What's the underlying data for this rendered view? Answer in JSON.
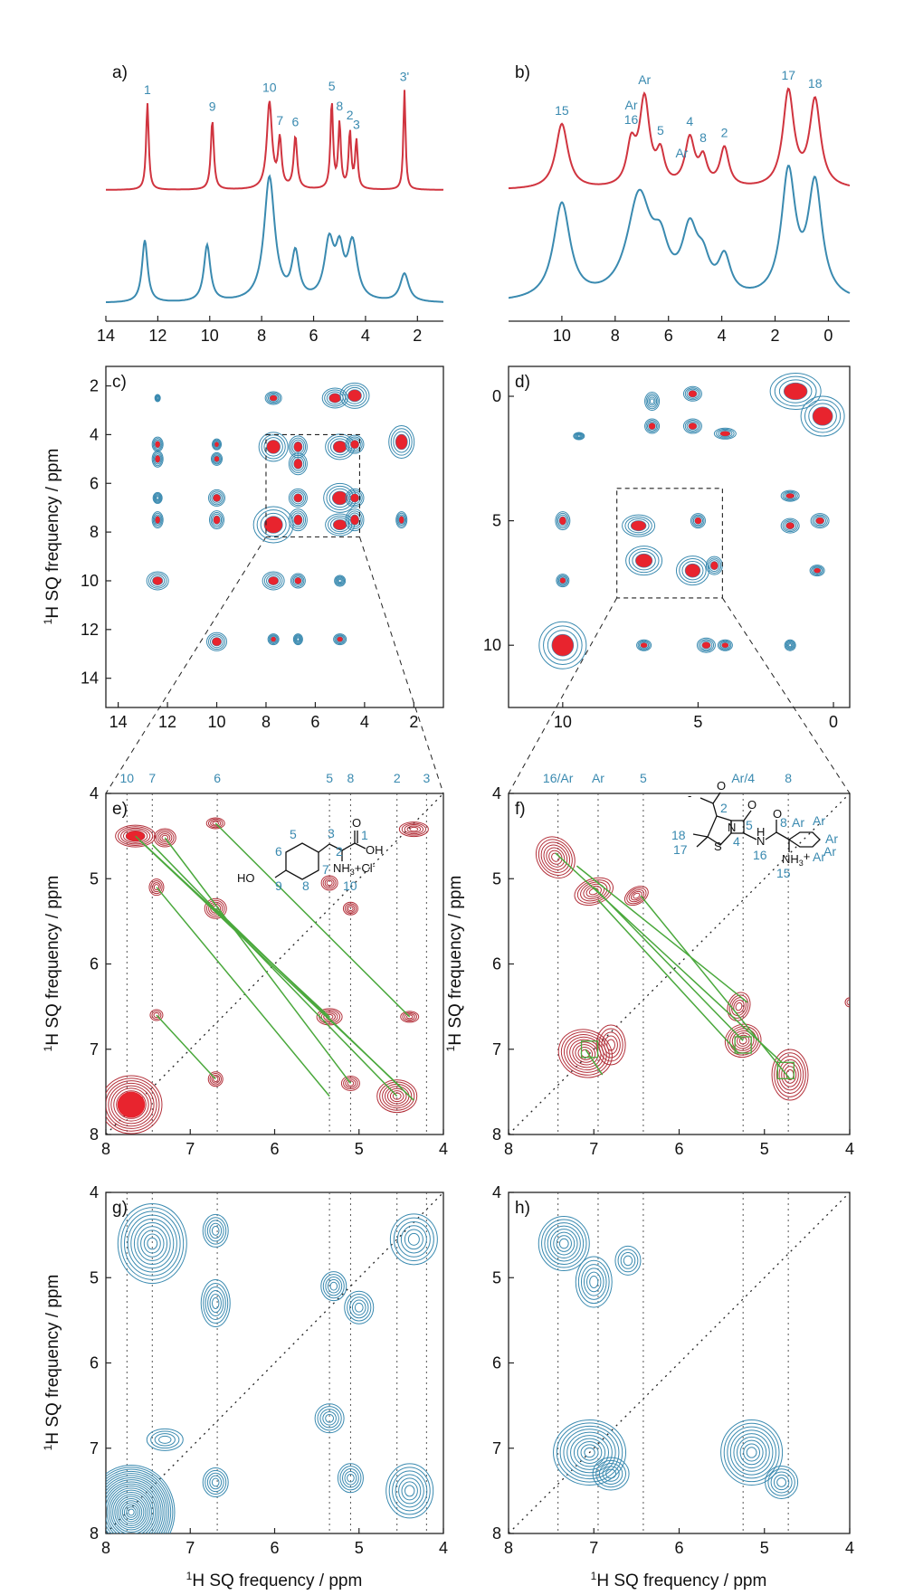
{
  "figure": {
    "axis_label_prefix": "1",
    "axis_label_main": "H SQ frequency / ppm"
  },
  "colors": {
    "red": "#d0343f",
    "blue": "#3a8ab0",
    "green": "#4aa83c",
    "fillred": "#e8242e",
    "darkred": "#b3303a"
  },
  "chart_data": [
    {
      "panel": "a)",
      "type": "line",
      "xlim": [
        14,
        1
      ],
      "xticks": [
        "14",
        "12",
        "10",
        "8",
        "6",
        "4",
        "2"
      ],
      "xtick_values": [
        14,
        12,
        10,
        8,
        6,
        4,
        2
      ],
      "series": [
        {
          "peaks": [
            [
              12.4,
              1.0,
              0.06
            ],
            [
              9.9,
              0.8,
              0.07
            ],
            [
              7.7,
              1.0,
              0.12
            ],
            [
              7.3,
              0.55,
              0.08
            ],
            [
              6.7,
              0.6,
              0.08
            ],
            [
              5.3,
              1.0,
              0.06
            ],
            [
              5.0,
              0.75,
              0.06
            ],
            [
              4.6,
              0.65,
              0.06
            ],
            [
              4.35,
              0.55,
              0.06
            ],
            [
              2.5,
              1.15,
              0.05
            ]
          ]
        },
        {
          "peaks": [
            [
              12.5,
              0.55,
              0.13
            ],
            [
              10.1,
              0.5,
              0.15
            ],
            [
              7.7,
              1.1,
              0.25
            ],
            [
              6.7,
              0.4,
              0.17
            ],
            [
              5.4,
              0.5,
              0.22
            ],
            [
              5.0,
              0.38,
              0.18
            ],
            [
              4.5,
              0.5,
              0.22
            ],
            [
              2.5,
              0.25,
              0.2
            ]
          ]
        }
      ],
      "peak_labels": [
        {
          "text": "1",
          "x": 12.4
        },
        {
          "text": "9",
          "x": 9.9
        },
        {
          "text": "10",
          "x": 7.7
        },
        {
          "text": "7",
          "x": 7.3
        },
        {
          "text": "6",
          "x": 6.7
        },
        {
          "text": "5",
          "x": 5.3
        },
        {
          "text": "8",
          "x": 5.0
        },
        {
          "text": "2",
          "x": 4.6
        },
        {
          "text": "3",
          "x": 4.35
        },
        {
          "text": "3'",
          "x": 2.5
        }
      ]
    },
    {
      "panel": "b)",
      "type": "line",
      "xlim": [
        12,
        -0.8
      ],
      "xticks": [
        "10",
        "8",
        "6",
        "4",
        "2",
        "0"
      ],
      "xtick_values": [
        10,
        8,
        6,
        4,
        2,
        0
      ],
      "series": [
        {
          "peaks": [
            [
              10.0,
              0.75,
              0.28
            ],
            [
              7.4,
              0.45,
              0.2
            ],
            [
              6.9,
              1.0,
              0.23
            ],
            [
              6.3,
              0.35,
              0.18
            ],
            [
              5.2,
              0.55,
              0.22
            ],
            [
              4.7,
              0.3,
              0.18
            ],
            [
              3.9,
              0.45,
              0.2
            ],
            [
              1.5,
              1.1,
              0.25
            ],
            [
              0.5,
              1.0,
              0.25
            ]
          ]
        },
        {
          "peaks": [
            [
              10.0,
              0.85,
              0.38
            ],
            [
              7.1,
              0.9,
              0.55
            ],
            [
              6.3,
              0.35,
              0.35
            ],
            [
              5.2,
              0.55,
              0.35
            ],
            [
              4.7,
              0.25,
              0.3
            ],
            [
              3.9,
              0.33,
              0.28
            ],
            [
              1.5,
              1.1,
              0.32
            ],
            [
              0.5,
              1.0,
              0.32
            ]
          ]
        }
      ],
      "peak_labels": [
        {
          "text": "15",
          "x": 10.0
        },
        {
          "text": "16",
          "x": 7.4
        },
        {
          "text": "Ar",
          "x": 7.4
        },
        {
          "text": "Ar",
          "x": 6.9
        },
        {
          "text": "5",
          "x": 6.3
        },
        {
          "text": "Ar",
          "x": 5.5
        },
        {
          "text": "4",
          "x": 5.2
        },
        {
          "text": "8",
          "x": 4.7
        },
        {
          "text": "2",
          "x": 3.9
        },
        {
          "text": "17",
          "x": 1.5
        },
        {
          "text": "18",
          "x": 0.5
        }
      ]
    },
    {
      "panel": "c)",
      "type": "scatter",
      "xlim": [
        14.5,
        0.8
      ],
      "ylim": [
        1.2,
        15.2
      ],
      "xticks": [
        "14",
        "12",
        "10",
        "8",
        "6",
        "4",
        "2"
      ],
      "xtick_values": [
        14,
        12,
        10,
        8,
        6,
        4,
        2
      ],
      "yticks": [
        "2",
        "4",
        "6",
        "8",
        "10",
        "12",
        "14"
      ],
      "ytick_values": [
        2,
        4,
        6,
        8,
        10,
        12,
        14
      ]
    },
    {
      "panel": "d)",
      "type": "scatter",
      "xlim": [
        12,
        -0.6
      ],
      "ylim": [
        -1.2,
        12.5
      ],
      "xticks": [
        "10",
        "5",
        "0"
      ],
      "xtick_values": [
        10,
        5,
        0
      ],
      "yticks": [
        "0",
        "5",
        "10"
      ],
      "ytick_values": [
        0,
        5,
        10
      ]
    },
    {
      "panel": "e)",
      "type": "scatter",
      "xlim": [
        8,
        4
      ],
      "ylim": [
        4,
        8
      ],
      "xticks": [
        "8",
        "7",
        "6",
        "5",
        "4"
      ],
      "xtick_values": [
        8,
        7,
        6,
        5,
        4
      ],
      "yticks": [
        "4",
        "5",
        "6",
        "7",
        "8"
      ],
      "ytick_values": [
        4,
        5,
        6,
        7,
        8
      ],
      "top_labels": [
        {
          "text": "10",
          "x": 7.75
        },
        {
          "text": "7",
          "x": 7.45
        },
        {
          "text": "6",
          "x": 6.68
        },
        {
          "text": "5",
          "x": 5.35
        },
        {
          "text": "8",
          "x": 5.1
        },
        {
          "text": "2",
          "x": 4.55
        },
        {
          "text": "3",
          "x": 4.2
        }
      ]
    },
    {
      "panel": "f)",
      "type": "scatter",
      "xlim": [
        8,
        4
      ],
      "ylim": [
        4,
        8
      ],
      "xticks": [
        "8",
        "7",
        "6",
        "5",
        "4"
      ],
      "xtick_values": [
        8,
        7,
        6,
        5,
        4
      ],
      "yticks": [
        "4",
        "5",
        "6",
        "7",
        "8"
      ],
      "ytick_values": [
        4,
        5,
        6,
        7,
        8
      ],
      "top_labels": [
        {
          "text": "16/Ar",
          "x": 7.42
        },
        {
          "text": "Ar",
          "x": 6.95
        },
        {
          "text": "5",
          "x": 6.42
        },
        {
          "text": "Ar/4",
          "x": 5.25
        },
        {
          "text": "8",
          "x": 4.72
        }
      ]
    },
    {
      "panel": "g)",
      "type": "scatter",
      "xlim": [
        8,
        4
      ],
      "ylim": [
        4,
        8
      ],
      "xticks": [
        "8",
        "7",
        "6",
        "5",
        "4"
      ],
      "xtick_values": [
        8,
        7,
        6,
        5,
        4
      ],
      "yticks": [
        "4",
        "5",
        "6",
        "7",
        "8"
      ],
      "ytick_values": [
        4,
        5,
        6,
        7,
        8
      ]
    },
    {
      "panel": "h)",
      "type": "scatter",
      "xlim": [
        8,
        4
      ],
      "ylim": [
        4,
        8
      ],
      "xticks": [
        "8",
        "7",
        "6",
        "5",
        "4"
      ],
      "xtick_values": [
        8,
        7,
        6,
        5,
        4
      ],
      "yticks": [
        "4",
        "5",
        "6",
        "7",
        "8"
      ],
      "ytick_values": [
        4,
        5,
        6,
        7,
        8
      ]
    }
  ],
  "structures": {
    "e": {
      "numbers": [
        "5",
        "6",
        "7",
        "8",
        "9",
        "10",
        "3",
        "2",
        "1"
      ],
      "atoms": [
        "HO",
        "NH",
        "3",
        "Cl",
        "O",
        "OH"
      ]
    },
    "f": {
      "numbers": [
        "2",
        "4",
        "5",
        "8",
        "15",
        "16",
        "17",
        "18",
        "Ar",
        "Ar",
        "Ar",
        "Ar",
        "Ar"
      ],
      "atoms": [
        "O",
        "N",
        "S",
        "O",
        "H",
        "N",
        "NH",
        "3",
        "O",
        "-"
      ]
    }
  }
}
